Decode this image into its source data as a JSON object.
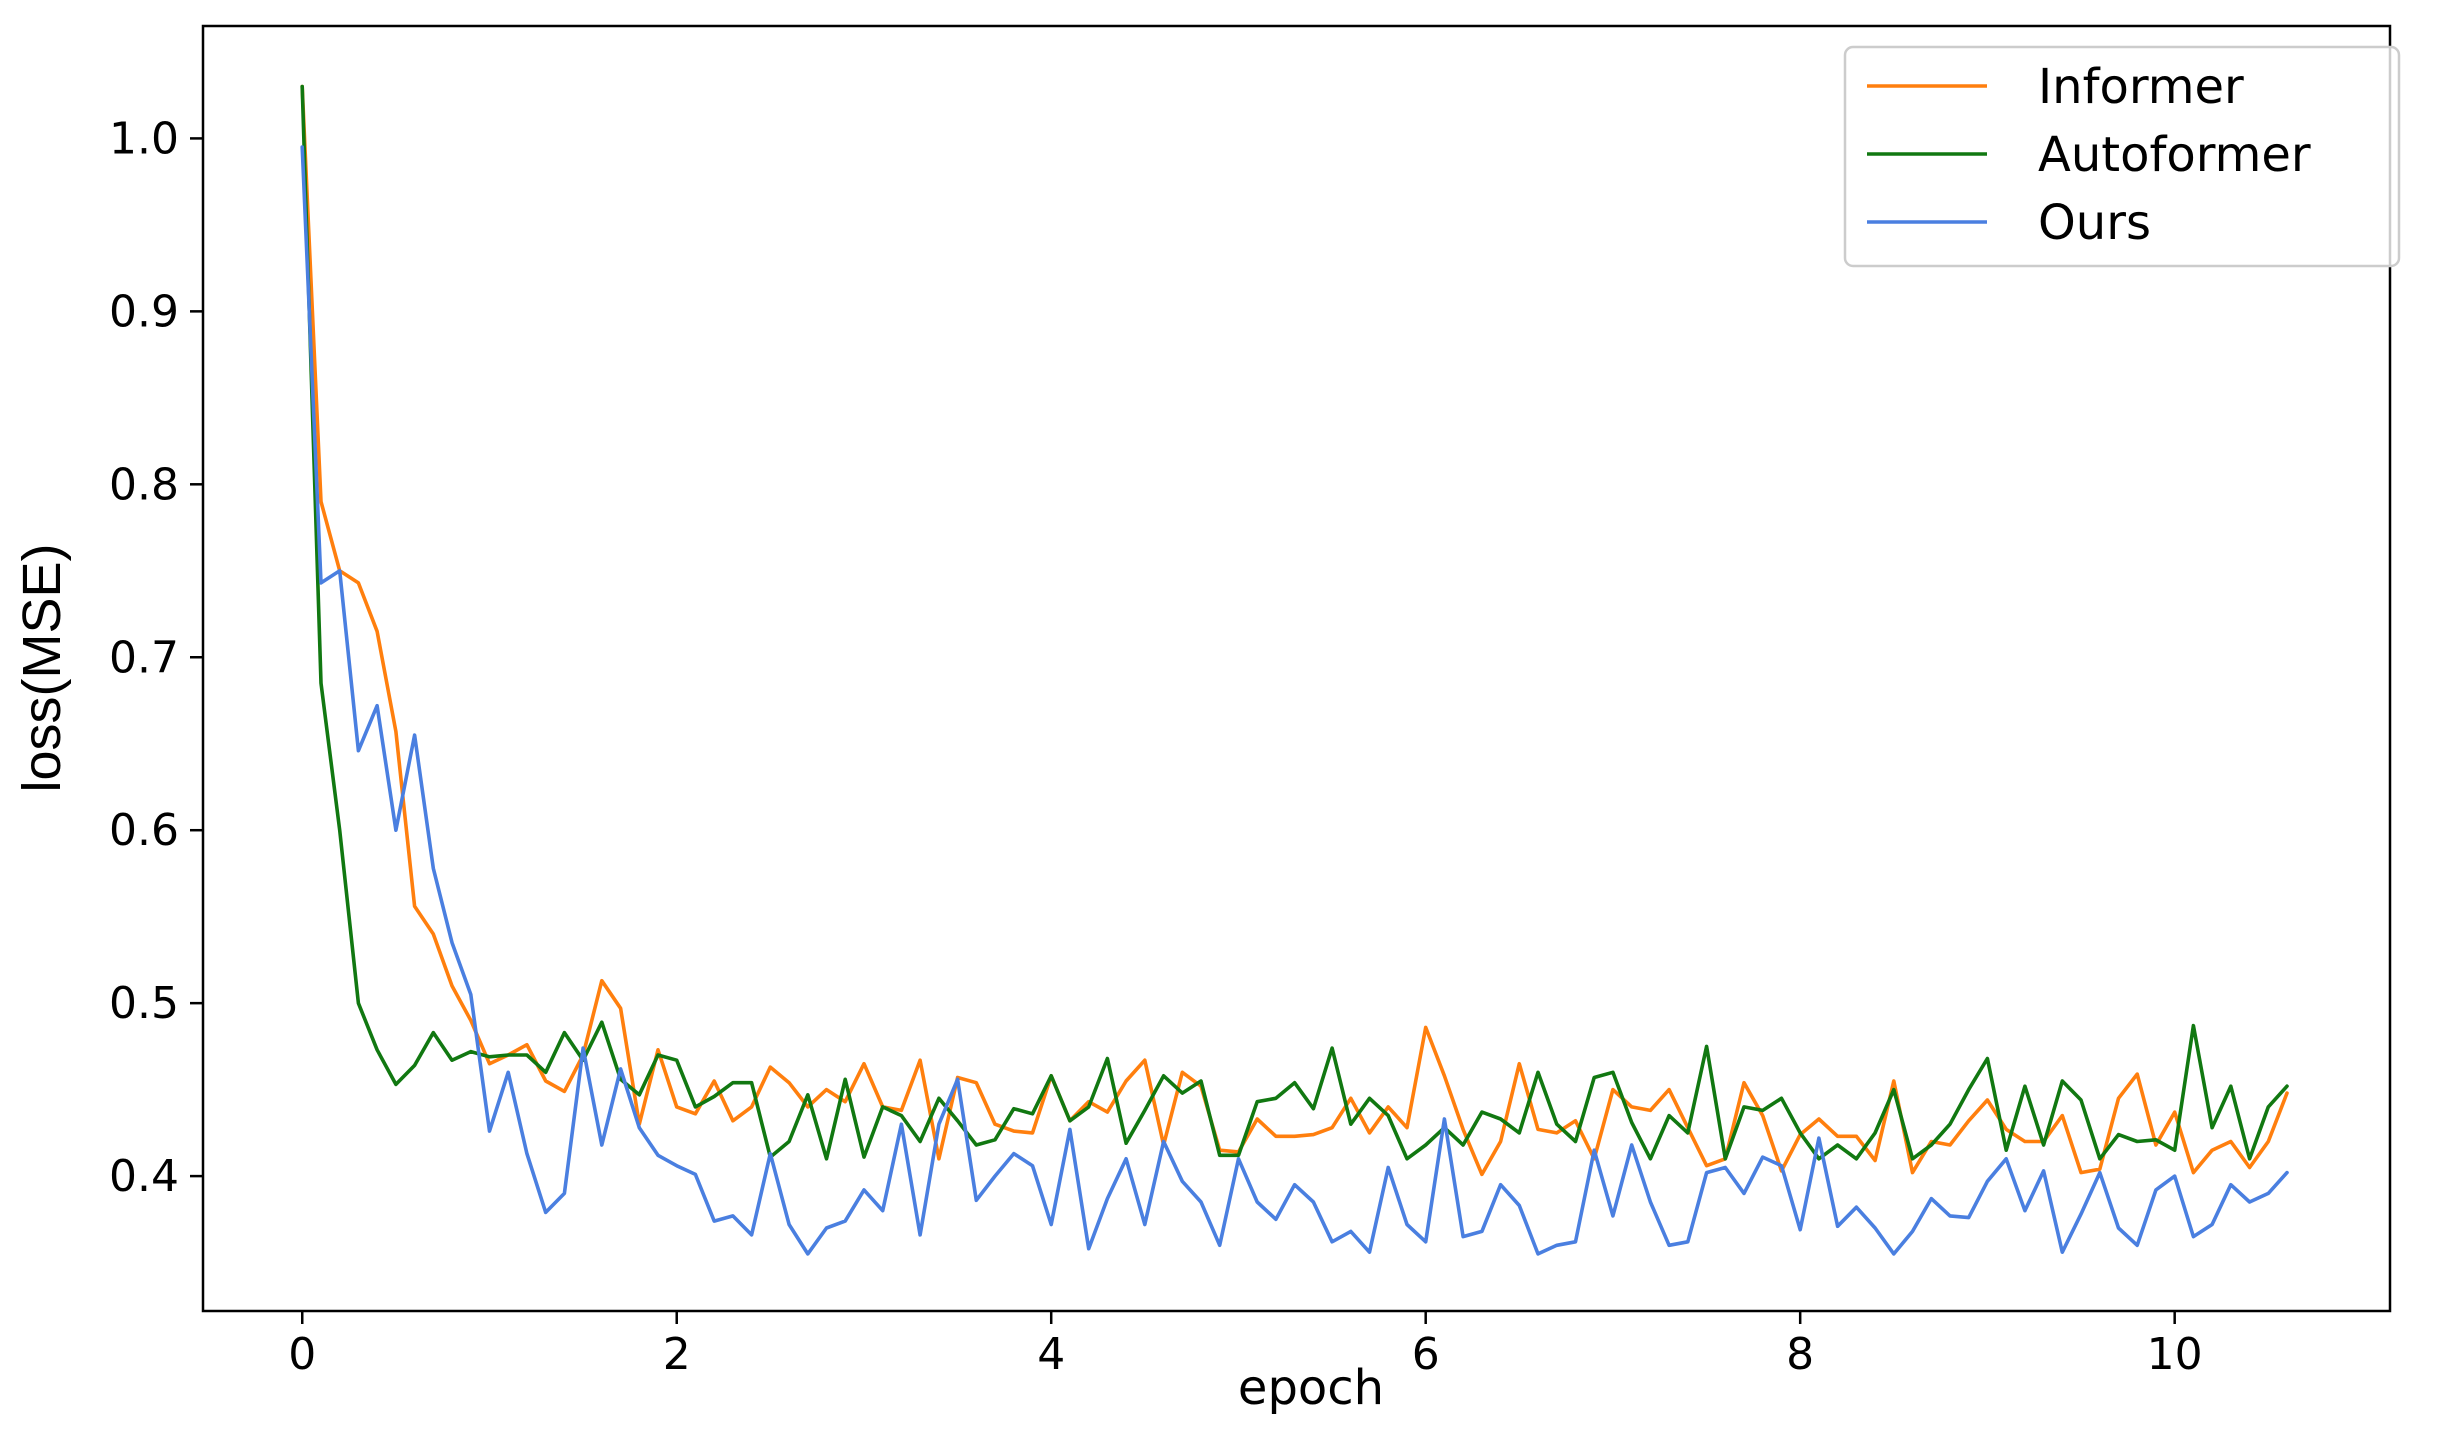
{
  "chart_data": {
    "type": "line",
    "title": "",
    "xlabel": "epoch",
    "ylabel": "loss(MSE)",
    "xlim": [
      -0.53,
      11.15
    ],
    "ylim": [
      0.322,
      1.065
    ],
    "xticks": [
      0,
      2,
      4,
      6,
      8,
      10
    ],
    "yticks": [
      0.4,
      0.5,
      0.6,
      0.7,
      0.8,
      0.9,
      1.0
    ],
    "xtick_labels": [
      "0",
      "2",
      "4",
      "6",
      "8",
      "10"
    ],
    "ytick_labels": [
      "0.4",
      "0.5",
      "0.6",
      "0.7",
      "0.8",
      "0.9",
      "1.0"
    ],
    "grid": false,
    "legend_position": "top-right",
    "x_start": 0,
    "x_step": 0.1,
    "series": [
      {
        "name": "Informer",
        "color": "#ff7f0e",
        "values": [
          1.03,
          0.79,
          0.75,
          0.743,
          0.715,
          0.657,
          0.556,
          0.54,
          0.51,
          0.49,
          0.465,
          0.47,
          0.476,
          0.455,
          0.449,
          0.47,
          0.513,
          0.497,
          0.43,
          0.473,
          0.44,
          0.436,
          0.455,
          0.432,
          0.44,
          0.463,
          0.454,
          0.44,
          0.45,
          0.443,
          0.465,
          0.44,
          0.438,
          0.467,
          0.41,
          0.457,
          0.454,
          0.43,
          0.426,
          0.425,
          0.458,
          0.432,
          0.443,
          0.437,
          0.455,
          0.467,
          0.418,
          0.46,
          0.452,
          0.415,
          0.414,
          0.433,
          0.423,
          0.423,
          0.424,
          0.428,
          0.445,
          0.425,
          0.44,
          0.428,
          0.486,
          0.458,
          0.427,
          0.401,
          0.42,
          0.465,
          0.427,
          0.425,
          0.432,
          0.41,
          0.45,
          0.44,
          0.438,
          0.45,
          0.428,
          0.406,
          0.41,
          0.454,
          0.435,
          0.403,
          0.424,
          0.433,
          0.423,
          0.423,
          0.409,
          0.455,
          0.402,
          0.42,
          0.418,
          0.432,
          0.444,
          0.427,
          0.42,
          0.42,
          0.435,
          0.402,
          0.404,
          0.445,
          0.459,
          0.418,
          0.437,
          0.402,
          0.415,
          0.42,
          0.405,
          0.42,
          0.448
        ]
      },
      {
        "name": "Autoformer",
        "color": "#117811",
        "values": [
          1.03,
          0.685,
          0.6,
          0.5,
          0.473,
          0.453,
          0.464,
          0.483,
          0.467,
          0.472,
          0.469,
          0.47,
          0.47,
          0.46,
          0.483,
          0.467,
          0.489,
          0.456,
          0.447,
          0.47,
          0.467,
          0.44,
          0.446,
          0.454,
          0.454,
          0.411,
          0.42,
          0.447,
          0.41,
          0.456,
          0.411,
          0.44,
          0.435,
          0.42,
          0.445,
          0.432,
          0.418,
          0.421,
          0.439,
          0.436,
          0.458,
          0.432,
          0.44,
          0.468,
          0.419,
          0.438,
          0.458,
          0.448,
          0.455,
          0.412,
          0.412,
          0.443,
          0.445,
          0.454,
          0.439,
          0.474,
          0.43,
          0.445,
          0.435,
          0.41,
          0.418,
          0.428,
          0.418,
          0.437,
          0.433,
          0.425,
          0.46,
          0.43,
          0.42,
          0.457,
          0.46,
          0.431,
          0.41,
          0.435,
          0.425,
          0.475,
          0.41,
          0.44,
          0.438,
          0.445,
          0.425,
          0.41,
          0.418,
          0.41,
          0.425,
          0.45,
          0.41,
          0.418,
          0.43,
          0.45,
          0.468,
          0.415,
          0.452,
          0.418,
          0.455,
          0.444,
          0.41,
          0.424,
          0.42,
          0.421,
          0.415,
          0.487,
          0.428,
          0.452,
          0.41,
          0.44,
          0.452
        ]
      },
      {
        "name": "Ours",
        "color": "#4a7fe0",
        "values": [
          0.995,
          0.743,
          0.75,
          0.646,
          0.672,
          0.6,
          0.655,
          0.578,
          0.535,
          0.505,
          0.426,
          0.46,
          0.413,
          0.379,
          0.39,
          0.474,
          0.418,
          0.462,
          0.428,
          0.412,
          0.406,
          0.401,
          0.374,
          0.377,
          0.366,
          0.413,
          0.372,
          0.355,
          0.37,
          0.374,
          0.392,
          0.38,
          0.43,
          0.366,
          0.43,
          0.456,
          0.386,
          0.4,
          0.413,
          0.406,
          0.372,
          0.427,
          0.358,
          0.387,
          0.41,
          0.372,
          0.42,
          0.397,
          0.385,
          0.36,
          0.41,
          0.385,
          0.375,
          0.395,
          0.385,
          0.362,
          0.368,
          0.356,
          0.405,
          0.372,
          0.362,
          0.433,
          0.365,
          0.368,
          0.395,
          0.383,
          0.355,
          0.36,
          0.362,
          0.415,
          0.377,
          0.418,
          0.385,
          0.36,
          0.362,
          0.402,
          0.405,
          0.39,
          0.411,
          0.406,
          0.369,
          0.422,
          0.371,
          0.382,
          0.37,
          0.355,
          0.368,
          0.387,
          0.377,
          0.376,
          0.397,
          0.41,
          0.38,
          0.403,
          0.356,
          0.378,
          0.402,
          0.37,
          0.36,
          0.392,
          0.4,
          0.365,
          0.372,
          0.395,
          0.385,
          0.39,
          0.402
        ]
      }
    ]
  }
}
